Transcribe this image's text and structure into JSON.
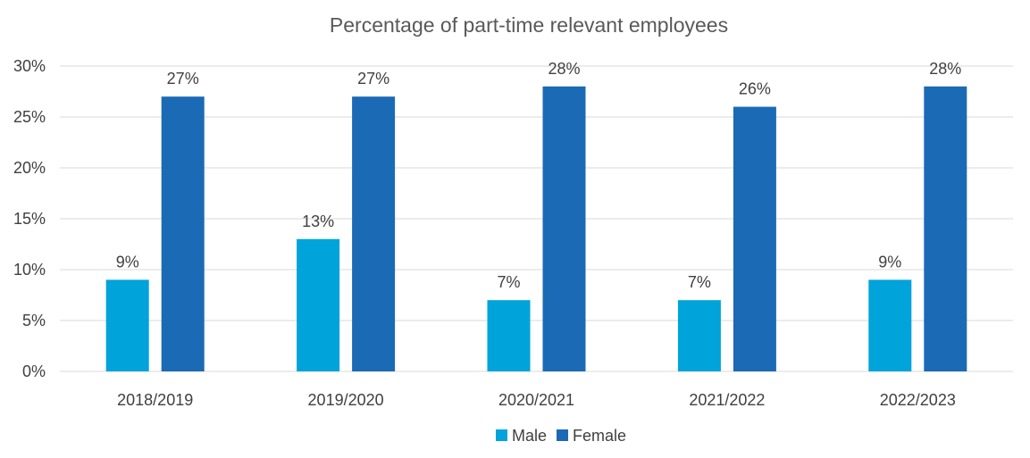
{
  "chart_data": {
    "type": "bar",
    "title": "Percentage of part-time relevant employees",
    "categories": [
      "2018/2019",
      "2019/2020",
      "2020/2021",
      "2021/2022",
      "2022/2023"
    ],
    "series": [
      {
        "name": "Male",
        "values": [
          9,
          13,
          7,
          7,
          9
        ],
        "labels": [
          "9%",
          "13%",
          "7%",
          "7%",
          "9%"
        ],
        "color": "#00A3DA"
      },
      {
        "name": "Female",
        "values": [
          27,
          27,
          28,
          26,
          28
        ],
        "labels": [
          "27%",
          "27%",
          "28%",
          "26%",
          "28%"
        ],
        "color": "#1B6AB5"
      }
    ],
    "ylim": [
      0,
      30
    ],
    "yticks": [
      "0%",
      "5%",
      "10%",
      "15%",
      "20%",
      "25%",
      "30%"
    ],
    "ytick_values": [
      0,
      5,
      10,
      15,
      20,
      25,
      30
    ],
    "grid": true,
    "legend": "bottom-center",
    "gridline_color": "#D9D9D9"
  }
}
